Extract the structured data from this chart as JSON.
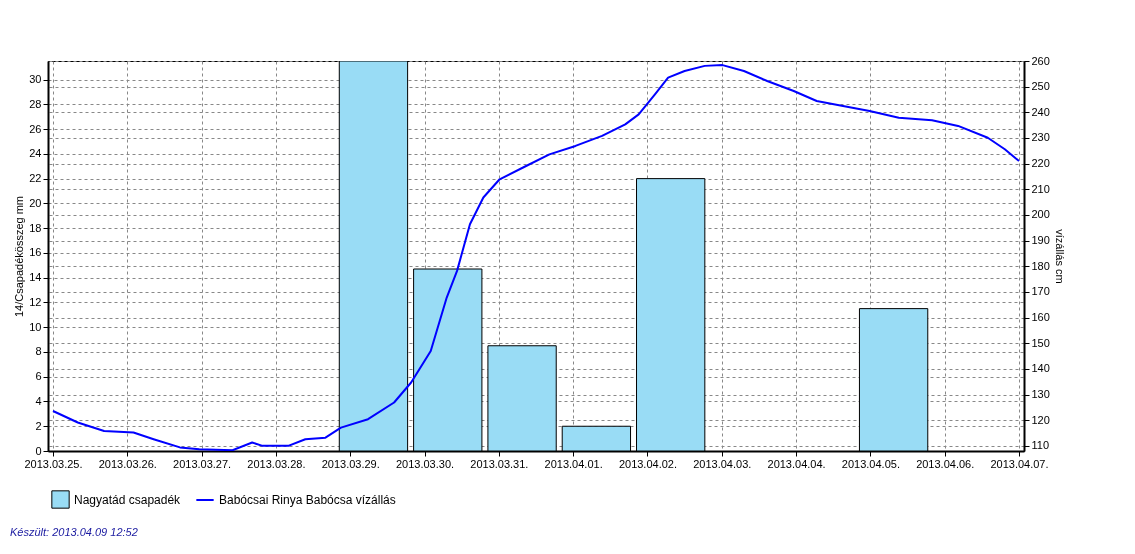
{
  "chart_data": {
    "type": "bar",
    "series": [
      {
        "name": "Nagyatád csapadék",
        "color": "#99dcf5",
        "x": [
          "2013-03-29T07:30",
          "2013-03-30T07:30",
          "2013-03-31T07:30",
          "2013-04-01T07:30",
          "2013-04-02T07:30",
          "2013-04-05T07:30"
        ],
        "values": [
          31.5,
          14.7,
          8.5,
          2,
          22,
          11.5
        ]
      },
      {
        "name": "Babócsai Rinya Babócsa vízállás",
        "type": "line",
        "axis": "y2",
        "color": "#0000ff",
        "x": [
          "2013-03-25T00:00",
          "2013-03-25T08:00",
          "2013-03-25T16:30",
          "2013-03-26T02:00",
          "2013-03-26T08:30",
          "2013-03-26T17:00",
          "2013-03-26T23:15",
          "2013-03-27T10:00",
          "2013-03-27T16:20",
          "2013-03-27T19:40",
          "2013-03-28T04:00",
          "2013-03-28T09:30",
          "2013-03-28T16:00",
          "2013-03-28T21:00",
          "2013-03-29T05:45",
          "2013-03-29T14:10",
          "2013-03-29T19:40",
          "2013-03-30T02:00",
          "2013-03-30T07:10",
          "2013-03-30T10:30",
          "2013-03-30T14:40",
          "2013-03-30T19:00",
          "2013-03-31T00:15",
          "2013-03-31T07:40",
          "2013-03-31T16:20",
          "2013-04-01T00:45",
          "2013-04-01T09:20",
          "2013-04-01T16:50",
          "2013-04-01T21:10",
          "2013-04-02T02:25",
          "2013-04-02T06:40",
          "2013-04-02T12:00",
          "2013-04-02T18:30",
          "2013-04-03T00:15",
          "2013-04-03T07:10",
          "2013-04-03T14:40",
          "2013-04-03T23:15",
          "2013-04-04T06:40",
          "2013-04-04T15:10",
          "2013-04-04T23:45",
          "2013-04-05T09:10",
          "2013-04-05T19:55",
          "2013-04-06T04:20",
          "2013-04-06T13:55",
          "2013-04-06T19:25",
          "2013-04-07T00:00"
        ],
        "values": [
          123.6,
          119.1,
          115.8,
          115.2,
          112.6,
          109.4,
          108.7,
          108.3,
          111.3,
          110,
          110,
          112.6,
          113.2,
          117.1,
          120.4,
          126.9,
          134.7,
          147,
          167.8,
          178.2,
          196.4,
          206.8,
          213.9,
          218.4,
          223.6,
          226.9,
          230.8,
          235.3,
          239.2,
          247,
          253.5,
          256.1,
          258.1,
          258.4,
          256.1,
          252.2,
          248.3,
          244.4,
          242.5,
          240.5,
          237.9,
          236.9,
          234.7,
          230.1,
          225.6,
          221
        ]
      }
    ],
    "ylabel": "14/Csapadékösszeg mm",
    "y2label": "vízállás cm",
    "xlim": [
      "2013-03-25",
      "2013-04-07"
    ],
    "xticks": [
      {
        "value": "2013-03-25",
        "label": "2013.03.25."
      },
      {
        "value": "2013-03-26",
        "label": "2013.03.26."
      },
      {
        "value": "2013-03-27",
        "label": "2013.03.27."
      },
      {
        "value": "2013-03-28",
        "label": "2013.03.28."
      },
      {
        "value": "2013-03-29",
        "label": "2013.03.29."
      },
      {
        "value": "2013-03-30",
        "label": "2013.03.30."
      },
      {
        "value": "2013-03-31",
        "label": "2013.03.31."
      },
      {
        "value": "2013-04-01",
        "label": "2013.04.01."
      },
      {
        "value": "2013-04-02",
        "label": "2013.04.02."
      },
      {
        "value": "2013-04-03",
        "label": "2013.04.03."
      },
      {
        "value": "2013-04-04",
        "label": "2013.04.04."
      },
      {
        "value": "2013-04-05",
        "label": "2013.04.05."
      },
      {
        "value": "2013-04-06",
        "label": "2013.04.06."
      },
      {
        "value": "2013-04-07",
        "label": "2013.04.07."
      }
    ],
    "ylim": [
      0,
      31.5
    ],
    "yticks": [
      0,
      2,
      4,
      6,
      8,
      10,
      12,
      14,
      16,
      18,
      20,
      22,
      24,
      26,
      28,
      30
    ],
    "y2lim": [
      108,
      260
    ],
    "y2ticks": [
      110,
      120,
      130,
      140,
      150,
      160,
      170,
      180,
      190,
      200,
      210,
      220,
      230,
      240,
      250,
      260
    ],
    "grid": true,
    "legend": "bottom",
    "marker": "none",
    "line_style": "solid",
    "annotations": [
      "Készült: 2013.04.09 12:52"
    ]
  }
}
